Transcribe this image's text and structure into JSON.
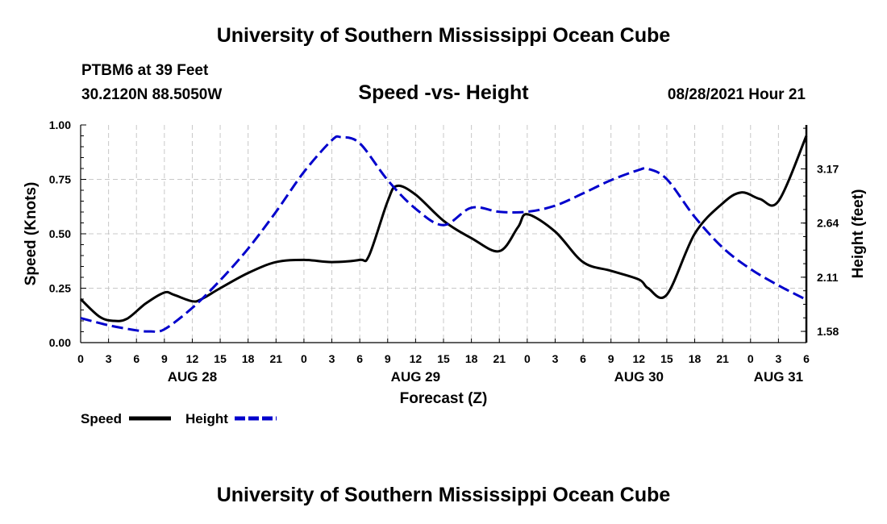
{
  "header": {
    "title": "University of Southern Mississippi Ocean Cube",
    "station": "PTBM6 at 39 Feet",
    "coords": "30.2120N  88.5050W",
    "subtitle": "Speed -vs- Height",
    "datetime": "08/28/2021 Hour 21"
  },
  "footer": {
    "title": "University of Southern Mississippi Ocean Cube"
  },
  "chart_data": {
    "type": "line",
    "title": "Speed -vs- Height",
    "xlabel": "Forecast (Z)",
    "ylabel": "Speed (Knots)",
    "y2label": "Height (feet)",
    "xlim": [
      0,
      78
    ],
    "ylim": [
      0,
      1.0
    ],
    "y2lim": [
      1.47,
      3.6
    ],
    "x_tick_values": [
      0,
      3,
      6,
      9,
      12,
      15,
      18,
      21,
      24,
      27,
      30,
      33,
      36,
      39,
      42,
      45,
      48,
      51,
      54,
      57,
      60,
      63,
      66,
      69,
      72,
      75,
      78
    ],
    "x_tick_labels": [
      "0",
      "3",
      "6",
      "9",
      "12",
      "15",
      "18",
      "21",
      "0",
      "3",
      "6",
      "9",
      "12",
      "15",
      "18",
      "21",
      "0",
      "3",
      "6",
      "9",
      "12",
      "15",
      "18",
      "21",
      "0",
      "3",
      "6"
    ],
    "date_labels": [
      {
        "x": 12,
        "label": "AUG 28"
      },
      {
        "x": 36,
        "label": "AUG 29"
      },
      {
        "x": 60,
        "label": "AUG 30"
      },
      {
        "x": 75,
        "label": "AUG 31"
      }
    ],
    "y_ticks": [
      {
        "value": 0.0,
        "label": "0.00"
      },
      {
        "value": 0.25,
        "label": "0.25"
      },
      {
        "value": 0.5,
        "label": "0.50"
      },
      {
        "value": 0.75,
        "label": "0.75"
      },
      {
        "value": 1.0,
        "label": "1.00"
      }
    ],
    "y2_ticks": [
      {
        "value": 1.58,
        "label": "1.58"
      },
      {
        "value": 2.11,
        "label": "2.11"
      },
      {
        "value": 2.64,
        "label": "2.64"
      },
      {
        "value": 3.17,
        "label": "3.17"
      }
    ],
    "grid": true,
    "legend": {
      "position": "bottom-left",
      "entries": [
        "Speed",
        "Height"
      ]
    },
    "series": [
      {
        "name": "Speed",
        "axis": "left",
        "color": "#000000",
        "dash": "solid",
        "x": [
          0,
          2,
          3.5,
          5,
          7,
          9,
          10,
          12,
          13,
          15,
          18,
          21,
          24,
          27,
          30,
          31,
          33,
          34,
          36,
          39,
          42,
          45,
          47,
          48,
          51,
          54,
          57,
          60,
          61,
          63,
          66,
          69,
          71,
          73,
          75,
          78
        ],
        "y": [
          0.2,
          0.12,
          0.1,
          0.11,
          0.18,
          0.23,
          0.22,
          0.19,
          0.2,
          0.25,
          0.32,
          0.37,
          0.38,
          0.37,
          0.38,
          0.4,
          0.65,
          0.72,
          0.68,
          0.56,
          0.48,
          0.42,
          0.53,
          0.59,
          0.51,
          0.37,
          0.33,
          0.29,
          0.25,
          0.22,
          0.5,
          0.64,
          0.69,
          0.66,
          0.65,
          0.95
        ]
      },
      {
        "name": "Height",
        "axis": "right",
        "color": "#0000cc",
        "dash": "dashed",
        "x": [
          0,
          3,
          6,
          7.5,
          9,
          12,
          15,
          18,
          21,
          24,
          27,
          28,
          30,
          33,
          36,
          39,
          42,
          45,
          48,
          51,
          54,
          57,
          60,
          61,
          63,
          66,
          69,
          72,
          75,
          78
        ],
        "y": [
          1.71,
          1.64,
          1.59,
          1.58,
          1.6,
          1.81,
          2.08,
          2.39,
          2.75,
          3.14,
          3.45,
          3.48,
          3.42,
          3.06,
          2.78,
          2.62,
          2.79,
          2.75,
          2.75,
          2.81,
          2.93,
          3.06,
          3.16,
          3.17,
          3.07,
          2.7,
          2.4,
          2.19,
          2.03,
          1.89
        ]
      }
    ]
  }
}
